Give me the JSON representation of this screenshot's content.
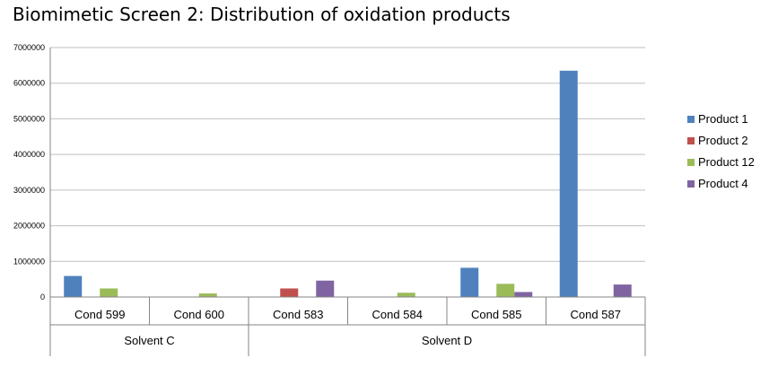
{
  "chart_data": {
    "type": "bar",
    "title": "Biomimetic Screen 2: Distribution of oxidation products",
    "xlabel": "",
    "ylabel": "",
    "ylim": [
      0,
      7000000
    ],
    "yticks": [
      0,
      1000000,
      2000000,
      3000000,
      4000000,
      5000000,
      6000000,
      7000000
    ],
    "ytick_labels": [
      "0",
      "1000000",
      "2000000",
      "3000000",
      "4000000",
      "5000000",
      "6000000",
      "7000000"
    ],
    "grid": true,
    "legend_position": "right",
    "categories": [
      "Cond 599",
      "Cond 600",
      "Cond 583",
      "Cond 584",
      "Cond 585",
      "Cond 587"
    ],
    "groups": [
      {
        "label": "Solvent C",
        "categories": [
          "Cond 599",
          "Cond 600"
        ]
      },
      {
        "label": "Solvent D",
        "categories": [
          "Cond 583",
          "Cond 584",
          "Cond 585",
          "Cond 587"
        ]
      }
    ],
    "series": [
      {
        "name": "Product 1",
        "color": "#4F81BD",
        "values": [
          590000,
          0,
          0,
          0,
          820000,
          6350000
        ]
      },
      {
        "name": "Product 2",
        "color": "#C0504D",
        "values": [
          0,
          0,
          240000,
          0,
          0,
          0
        ]
      },
      {
        "name": "Product 12",
        "color": "#9BBB59",
        "values": [
          240000,
          100000,
          0,
          120000,
          370000,
          0
        ]
      },
      {
        "name": "Product 4",
        "color": "#8064A2",
        "values": [
          0,
          0,
          460000,
          0,
          140000,
          350000
        ]
      }
    ]
  }
}
